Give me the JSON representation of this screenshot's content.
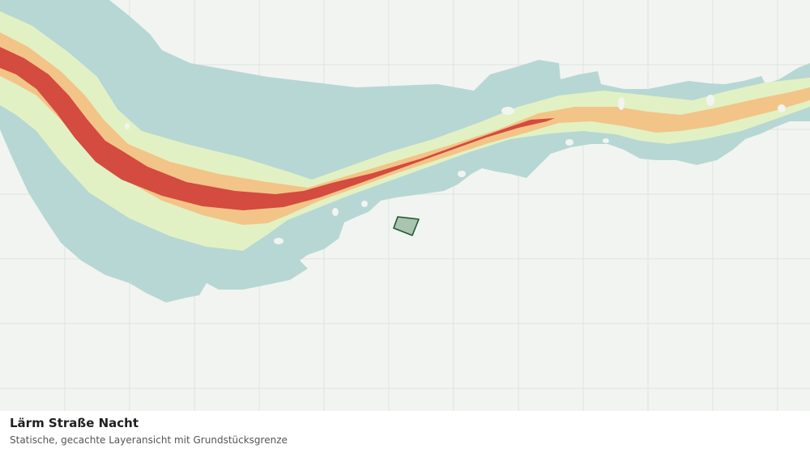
{
  "caption": {
    "title": "Lärm Straße Nacht",
    "subtitle": "Statische, gecachte Layeransicht mit Grundstücksgrenze"
  },
  "colors": {
    "background": "#f2f4f2",
    "grid": "#dfe3df",
    "zone_outer": "#b7d7d4",
    "zone_low": "#e2f1c4",
    "zone_mid": "#f3c487",
    "zone_high": "#d44b3f",
    "parcel_fill": "#a9c4b0",
    "parcel_stroke": "#1f5a2f"
  },
  "map": {
    "layers": [
      "zone-outer",
      "zone-low",
      "zone-mid",
      "zone-high"
    ],
    "parcel": "Grundstücksgrenze"
  }
}
